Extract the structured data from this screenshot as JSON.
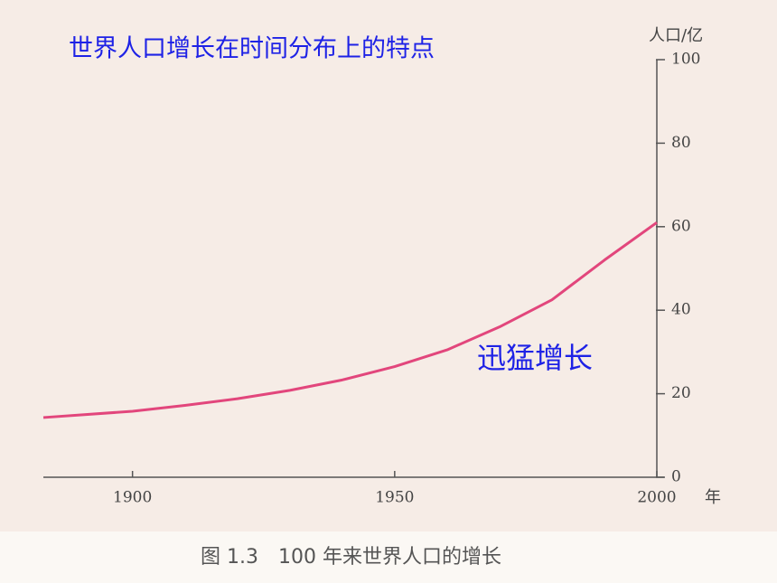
{
  "chart_data": {
    "type": "line",
    "title": "世界人口增长在时间分布上的特点",
    "annotation": "迅猛增长",
    "caption": "图 1.3　100 年来世界人口的增长",
    "y_label": "人口/亿",
    "x_label": "年",
    "x": [
      1883,
      1900,
      1910,
      1920,
      1930,
      1940,
      1950,
      1960,
      1970,
      1980,
      1990,
      2000
    ],
    "values": [
      14.3,
      15.8,
      17.2,
      18.8,
      20.8,
      23.3,
      26.5,
      30.5,
      36,
      42.5,
      52,
      61
    ],
    "color": "#e2467c",
    "xlim": [
      1883,
      2000
    ],
    "xticks": [
      1900,
      1950,
      2000
    ],
    "ylim": [
      0,
      100
    ],
    "yticks": [
      0,
      20,
      40,
      60,
      80,
      100
    ],
    "y_axis_side": "right"
  }
}
